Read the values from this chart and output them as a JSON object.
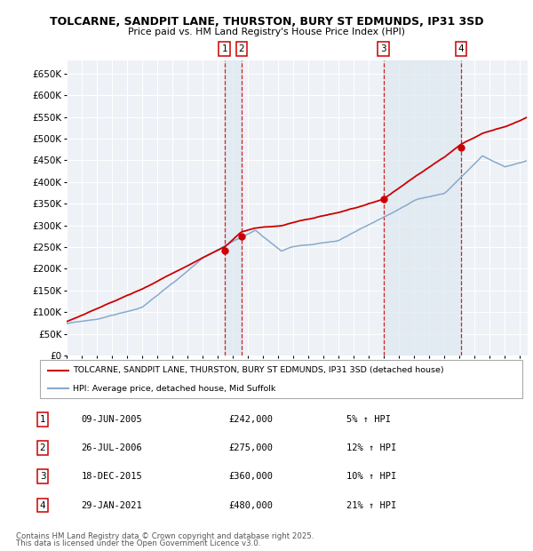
{
  "title": "TOLCARNE, SANDPIT LANE, THURSTON, BURY ST EDMUNDS, IP31 3SD",
  "subtitle": "Price paid vs. HM Land Registry's House Price Index (HPI)",
  "ylim": [
    0,
    680000
  ],
  "yticks": [
    0,
    50000,
    100000,
    150000,
    200000,
    250000,
    300000,
    350000,
    400000,
    450000,
    500000,
    550000,
    600000,
    650000
  ],
  "xlim_start": 1995.0,
  "xlim_end": 2025.5,
  "legend_line1": "TOLCARNE, SANDPIT LANE, THURSTON, BURY ST EDMUNDS, IP31 3SD (detached house)",
  "legend_line2": "HPI: Average price, detached house, Mid Suffolk",
  "footer1": "Contains HM Land Registry data © Crown copyright and database right 2025.",
  "footer2": "This data is licensed under the Open Government Licence v3.0.",
  "sale_markers": [
    {
      "num": 1,
      "date_str": "09-JUN-2005",
      "price": 242000,
      "pct": "5%",
      "x_year": 2005.44
    },
    {
      "num": 2,
      "date_str": "26-JUL-2006",
      "price": 275000,
      "pct": "12%",
      "x_year": 2006.57
    },
    {
      "num": 3,
      "date_str": "18-DEC-2015",
      "price": 360000,
      "pct": "10%",
      "x_year": 2015.96
    },
    {
      "num": 4,
      "date_str": "29-JAN-2021",
      "price": 480000,
      "pct": "21%",
      "x_year": 2021.08
    }
  ],
  "price_paid_color": "#cc0000",
  "hpi_color": "#88aacc",
  "dashed_line_color": "#cc0000",
  "shade_color": "#dde8f0",
  "background_plot": "#eef2f7",
  "grid_color": "#ffffff",
  "marker_box_color": "#cc0000",
  "dot_color": "#cc0000"
}
